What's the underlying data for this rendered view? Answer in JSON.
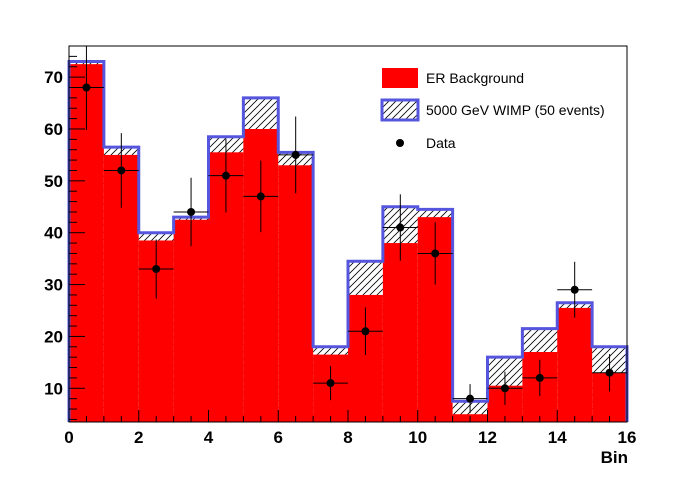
{
  "chart_data": {
    "type": "bar",
    "title": "",
    "xlabel": "Bin",
    "ylabel": "",
    "xlim": [
      0,
      16
    ],
    "ylim": [
      3.5,
      76
    ],
    "x_ticks": [
      0,
      2,
      4,
      6,
      8,
      10,
      12,
      14,
      16
    ],
    "x_tick_labels": [
      "0",
      "2",
      "4",
      "6",
      "8",
      "10",
      "12",
      "14",
      "16"
    ],
    "y_ticks": [
      10,
      20,
      30,
      40,
      50,
      60,
      70
    ],
    "y_tick_labels": [
      "10",
      "20",
      "30",
      "40",
      "50",
      "60",
      "70"
    ],
    "grid": false,
    "legend_position": "top-right",
    "bin_edges": [
      0,
      1,
      2,
      3,
      4,
      5,
      6,
      7,
      8,
      9,
      10,
      11,
      12,
      13,
      14,
      15,
      16
    ],
    "series": [
      {
        "name": "ER Background",
        "kind": "filled-histogram",
        "color": "#ff0000",
        "values": [
          72.5,
          55,
          38.5,
          42.5,
          55.5,
          60,
          53,
          16.5,
          28,
          38,
          43,
          5,
          10.5,
          17,
          25.5,
          13
        ]
      },
      {
        "name": "5000 GeV WIMP (50 events)",
        "kind": "stacked-hatched-histogram",
        "color": "#5555dd",
        "values": [
          0.5,
          1.5,
          1.5,
          0.5,
          3,
          6,
          2.5,
          1.5,
          6.5,
          7,
          1.5,
          2.5,
          5.5,
          4.5,
          1,
          5
        ]
      },
      {
        "name": "Data",
        "kind": "points-with-errors",
        "color": "#000000",
        "x": [
          0.5,
          1.5,
          2.5,
          3.5,
          4.5,
          5.5,
          6.5,
          7.5,
          8.5,
          9.5,
          10.5,
          11.5,
          12.5,
          13.5,
          14.5,
          15.5
        ],
        "values": [
          68,
          52,
          33,
          44,
          51,
          47,
          55,
          11,
          21,
          41,
          36,
          8,
          10,
          12,
          29,
          13
        ],
        "errors": [
          8.2,
          7.2,
          5.7,
          6.6,
          7.1,
          6.9,
          7.4,
          3.3,
          4.6,
          6.4,
          6.0,
          2.8,
          3.2,
          3.5,
          5.4,
          3.6
        ]
      }
    ]
  }
}
